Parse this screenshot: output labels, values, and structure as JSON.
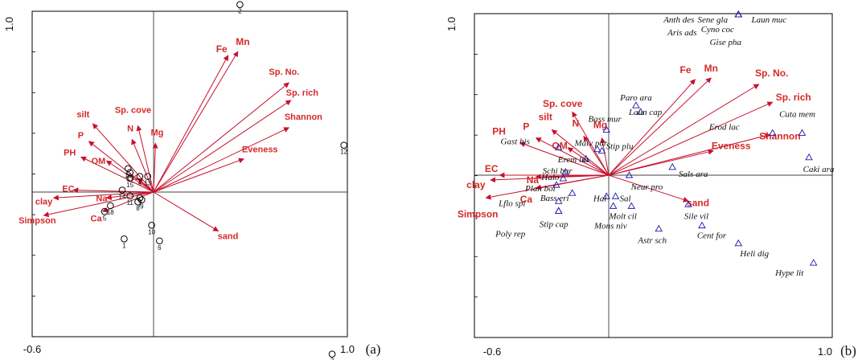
{
  "colors": {
    "arrow": "#c8102e",
    "env_label": "#d42a2a",
    "frame": "#000000",
    "site": "#000000",
    "species": "#1a1aa8"
  },
  "chart_data": [
    {
      "type": "scatter",
      "panel_label": "(a)",
      "xlim": [
        -0.6,
        1.0
      ],
      "ylim": [
        -1.0,
        1.0
      ],
      "x_tick_labels": [
        "-0.6",
        "1.0"
      ],
      "y_tick_top": "1.0",
      "env_vectors": [
        {
          "name": "Fe",
          "x": 0.38,
          "y": 0.7
        },
        {
          "name": "Mn",
          "x": 0.43,
          "y": 0.72
        },
        {
          "name": "Sp. No.",
          "x": 0.69,
          "y": 0.56
        },
        {
          "name": "Sp. rich",
          "x": 0.7,
          "y": 0.47
        },
        {
          "name": "Shannon",
          "x": 0.69,
          "y": 0.33
        },
        {
          "name": "Eveness",
          "x": 0.46,
          "y": 0.17
        },
        {
          "name": "sand",
          "x": 0.33,
          "y": -0.2
        },
        {
          "name": "Sp. cove",
          "x": -0.08,
          "y": 0.34
        },
        {
          "name": "Mg",
          "x": 0.01,
          "y": 0.25
        },
        {
          "name": "N",
          "x": -0.11,
          "y": 0.27
        },
        {
          "name": "silt",
          "x": -0.31,
          "y": 0.35
        },
        {
          "name": "P",
          "x": -0.33,
          "y": 0.26
        },
        {
          "name": "PH",
          "x": -0.37,
          "y": 0.18
        },
        {
          "name": "OM",
          "x": -0.24,
          "y": 0.16
        },
        {
          "name": "K",
          "x": -0.08,
          "y": 0.07
        },
        {
          "name": "EC",
          "x": -0.41,
          "y": 0.01
        },
        {
          "name": "clay",
          "x": -0.51,
          "y": -0.03
        },
        {
          "name": "Na",
          "x": -0.24,
          "y": -0.03
        },
        {
          "name": "Simpson",
          "x": -0.56,
          "y": -0.12
        },
        {
          "name": "Ca",
          "x": -0.26,
          "y": -0.1
        }
      ],
      "sites": [
        {
          "label": "1",
          "x": -0.15,
          "y": -0.24
        },
        {
          "label": "2",
          "x": 0.44,
          "y": 0.96
        },
        {
          "label": "3",
          "x": 0.91,
          "y": -0.83
        },
        {
          "label": "4",
          "x": -0.07,
          "y": 0.08
        },
        {
          "label": "5",
          "x": -0.25,
          "y": -0.1
        },
        {
          "label": "6",
          "x": 0.03,
          "y": -0.25
        },
        {
          "label": "7",
          "x": -0.07,
          "y": -0.03
        },
        {
          "label": "8",
          "x": -0.08,
          "y": -0.05
        },
        {
          "label": "9",
          "x": -0.06,
          "y": -0.04
        },
        {
          "label": "10",
          "x": -0.01,
          "y": -0.17
        },
        {
          "label": "11",
          "x": -0.12,
          "y": -0.02
        },
        {
          "label": "12",
          "x": 0.97,
          "y": 0.24
        },
        {
          "label": "13",
          "x": -0.03,
          "y": 0.08
        },
        {
          "label": "14",
          "x": -0.16,
          "y": 0.01
        },
        {
          "label": "15",
          "x": -0.12,
          "y": 0.07
        },
        {
          "label": "16",
          "x": -0.13,
          "y": 0.12
        },
        {
          "label": "17",
          "x": -0.12,
          "y": 0.1
        },
        {
          "label": "18",
          "x": -0.22,
          "y": -0.07
        }
      ]
    },
    {
      "type": "scatter",
      "panel_label": "(b)",
      "xlim": [
        -0.6,
        1.0
      ],
      "ylim": [
        -1.0,
        1.0
      ],
      "x_tick_labels": [
        "-0.6",
        "1.0"
      ],
      "y_tick_top": "1.0",
      "env_vectors": [
        {
          "name": "Fe",
          "x": 0.38,
          "y": 0.59
        },
        {
          "name": "Mn",
          "x": 0.45,
          "y": 0.6
        },
        {
          "name": "Sp. No.",
          "x": 0.66,
          "y": 0.56
        },
        {
          "name": "Sp. rich",
          "x": 0.72,
          "y": 0.45
        },
        {
          "name": "Shannon",
          "x": 0.71,
          "y": 0.25
        },
        {
          "name": "Eveness",
          "x": 0.46,
          "y": 0.15
        },
        {
          "name": "sand",
          "x": 0.35,
          "y": -0.16
        },
        {
          "name": "Sp. cove",
          "x": -0.16,
          "y": 0.39
        },
        {
          "name": "Mg",
          "x": -0.03,
          "y": 0.23
        },
        {
          "name": "N",
          "x": -0.11,
          "y": 0.24
        },
        {
          "name": "silt",
          "x": -0.25,
          "y": 0.28
        },
        {
          "name": "P",
          "x": -0.32,
          "y": 0.23
        },
        {
          "name": "PH",
          "x": -0.39,
          "y": 0.2
        },
        {
          "name": "OM",
          "x": -0.18,
          "y": 0.17
        },
        {
          "name": "EC",
          "x": -0.48,
          "y": 0.0
        },
        {
          "name": "Na",
          "x": -0.32,
          "y": -0.01
        },
        {
          "name": "clay",
          "x": -0.52,
          "y": -0.03
        },
        {
          "name": "Ca",
          "x": -0.32,
          "y": -0.08
        },
        {
          "name": "Simpson",
          "x": -0.54,
          "y": -0.14
        }
      ],
      "species": [
        {
          "label": "Anth des",
          "x": 0.57,
          "y": 0.99
        },
        {
          "label": "Sene gla",
          "x": 0.57,
          "y": 0.99
        },
        {
          "label": "Laun muc",
          "x": 0.57,
          "y": 0.99
        },
        {
          "label": "Aris ads",
          "x": 0.57,
          "y": 0.99
        },
        {
          "label": "Cyno coc",
          "x": 0.57,
          "y": 0.99
        },
        {
          "label": "Gise pha",
          "x": 0.57,
          "y": 0.99
        },
        {
          "label": "Paro ara",
          "x": 0.12,
          "y": 0.43
        },
        {
          "label": "Laun cap",
          "x": 0.14,
          "y": 0.39
        },
        {
          "label": "Bass mur",
          "x": -0.01,
          "y": 0.28
        },
        {
          "label": "Cuta mem",
          "x": 0.85,
          "y": 0.26
        },
        {
          "label": "Erod lac",
          "x": 0.72,
          "y": 0.26
        },
        {
          "label": "Malv par",
          "x": -0.05,
          "y": 0.16
        },
        {
          "label": "Stip plu",
          "x": -0.03,
          "y": 0.15
        },
        {
          "label": "Erem lin",
          "x": -0.1,
          "y": 0.1
        },
        {
          "label": "Gast his",
          "x": -0.22,
          "y": 0.17
        },
        {
          "label": "Caki ara",
          "x": 0.88,
          "y": 0.11
        },
        {
          "label": "Sals ara",
          "x": 0.28,
          "y": 0.05
        },
        {
          "label": "Schi bar",
          "x": -0.19,
          "y": 0.02
        },
        {
          "label": "Halo",
          "x": -0.2,
          "y": -0.02
        },
        {
          "label": "Neur pro",
          "x": 0.09,
          "y": 0.0
        },
        {
          "label": "Plan boi",
          "x": -0.23,
          "y": -0.06
        },
        {
          "label": "Hal",
          "x": -0.01,
          "y": -0.13
        },
        {
          "label": "Sal",
          "x": 0.03,
          "y": -0.13
        },
        {
          "label": "Bass eri",
          "x": -0.16,
          "y": -0.11
        },
        {
          "label": "Lflo spi",
          "x": -0.22,
          "y": -0.16
        },
        {
          "label": "Stip cap",
          "x": -0.22,
          "y": -0.22
        },
        {
          "label": "Poly rep",
          "x": -0.22,
          "y": -0.22
        },
        {
          "label": "Molt cil",
          "x": 0.02,
          "y": -0.19
        },
        {
          "label": "Mons niv",
          "x": 0.1,
          "y": -0.19
        },
        {
          "label": "Sile vil",
          "x": 0.35,
          "y": -0.18
        },
        {
          "label": "Cent for",
          "x": 0.41,
          "y": -0.31
        },
        {
          "label": "Astr sch",
          "x": 0.22,
          "y": -0.33
        },
        {
          "label": "Heli dig",
          "x": 0.57,
          "y": -0.42
        },
        {
          "label": "Hype lit",
          "x": 0.9,
          "y": -0.54
        }
      ]
    }
  ]
}
